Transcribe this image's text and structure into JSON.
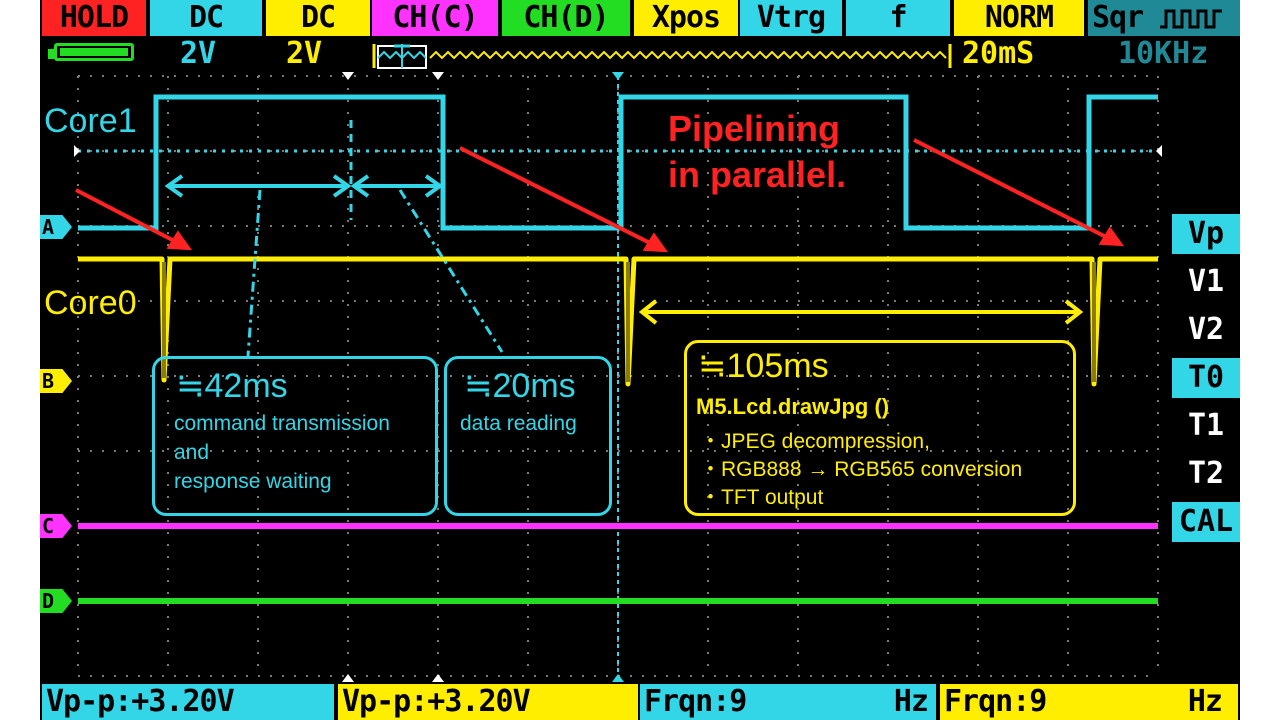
{
  "topbar": {
    "hold": "HOLD",
    "ch1_coupling": "DC",
    "ch2_coupling": "DC",
    "ch3": "CH(C)",
    "ch4": "CH(D)",
    "xpos": "Xpos",
    "vtrg": "Vtrg",
    "f": "f",
    "mode": "NORM",
    "wave": "Sqr"
  },
  "statusbar": {
    "ch1_volts": "2V",
    "ch2_volts": "2V",
    "timebase": "20mS",
    "sqr_freq": "10KHz"
  },
  "right_menu": [
    "Vp",
    "V1",
    "V2",
    "T0",
    "T1",
    "T2",
    "CAL"
  ],
  "channel_markers": [
    "A",
    "B",
    "C",
    "D"
  ],
  "annotations": {
    "core1": "Core1",
    "core0": "Core0",
    "pipelining_line1": "Pipelining",
    "pipelining_line2": "in parallel.",
    "box1_time": "≒42ms",
    "box1_line1": "command transmission",
    "box1_line2": "and",
    "box1_line3": "response waiting",
    "box2_time": "≒20ms",
    "box2_line1": "data reading",
    "box3_time": "≒105ms",
    "box3_func": "M5.Lcd.drawJpg ()",
    "box3_line1": "・JPEG decompression,",
    "box3_line2": "・RGB888 → RGB565 conversion",
    "box3_line3": "・TFT output"
  },
  "measurements": [
    {
      "label": "Vp-p:+3.20V",
      "unit": ""
    },
    {
      "label": "Vp-p:+3.20V",
      "unit": ""
    },
    {
      "label": "Frqn:9",
      "unit": "Hz"
    },
    {
      "label": "Frqn:9",
      "unit": "Hz"
    }
  ],
  "colors": {
    "ch_a": "#33d6e6",
    "ch_b": "#ffee00",
    "ch_c": "#ff33ff",
    "ch_d": "#22dd22",
    "arrow": "#ff2222",
    "hold_bg": "#ff2222"
  }
}
